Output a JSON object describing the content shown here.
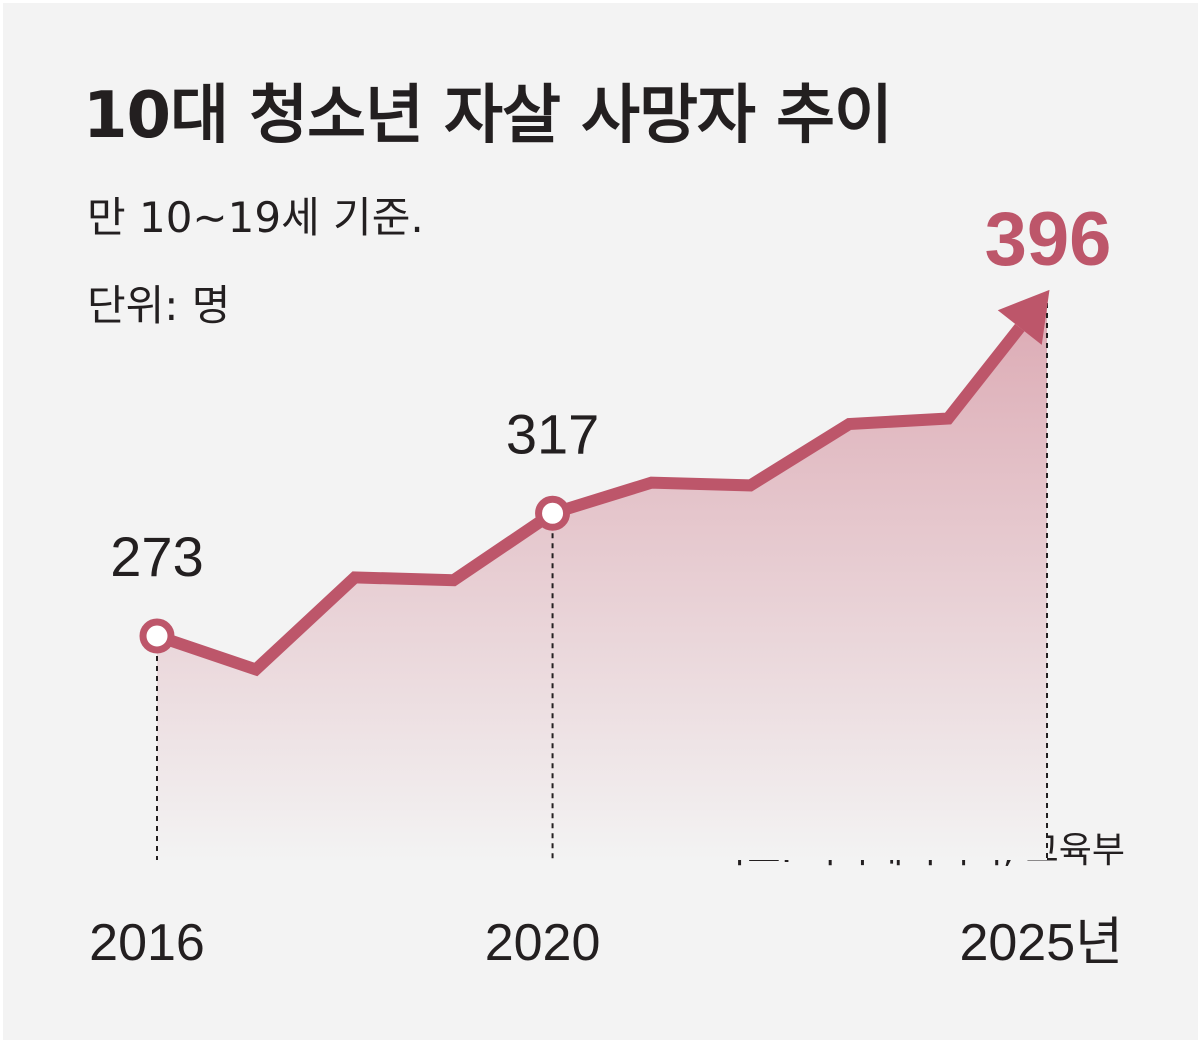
{
  "title": "10대 청소년 자살 사망자 추이",
  "subtitle": "만 10∼19세 기준.",
  "unit": "단위: 명",
  "source": "자료: 국가데이터처, 교육부",
  "colors": {
    "line": "#bd566a",
    "fill_top": "#dca9b3",
    "fill_bottom": "#f3f3f3",
    "text": "#231f20",
    "background": "#f3f3f3"
  },
  "chart_data": {
    "type": "area",
    "x": [
      2016,
      2017,
      2018,
      2019,
      2020,
      2021,
      2022,
      2023,
      2024,
      2025
    ],
    "values": [
      273,
      261,
      294,
      293,
      317,
      328,
      327,
      349,
      351,
      396
    ],
    "x_tick_labels": [
      "2016",
      "2020",
      "2025년"
    ],
    "x_tick_years": [
      2016,
      2020,
      2025
    ],
    "data_labels": [
      {
        "x": 2016,
        "label": "273"
      },
      {
        "x": 2020,
        "label": "317"
      },
      {
        "x": 2025,
        "label": "396"
      }
    ],
    "ylim": [
      240,
      400
    ],
    "grid": false,
    "legend": "none"
  }
}
